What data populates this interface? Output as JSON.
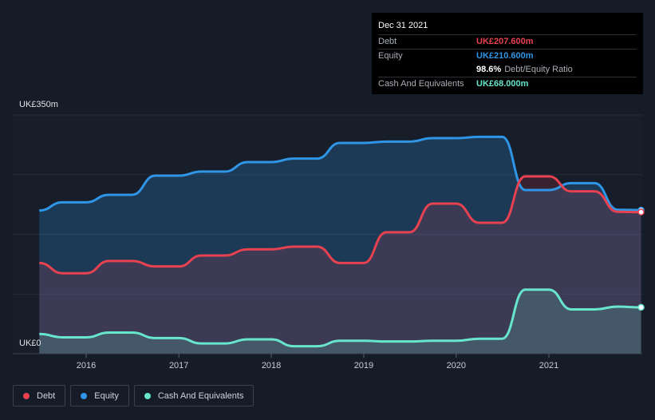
{
  "tooltip": {
    "date": "Dec 31 2021",
    "debt_label": "Debt",
    "debt_value": "UK£207.600m",
    "equity_label": "Equity",
    "equity_value": "UK£210.600m",
    "ratio_value": "98.6%",
    "ratio_label": "Debt/Equity Ratio",
    "cash_label": "Cash And Equivalents",
    "cash_value": "UK£68.000m"
  },
  "legend": [
    {
      "label": "Debt",
      "color": "#e8414f"
    },
    {
      "label": "Equity",
      "color": "#2f95e6"
    },
    {
      "label": "Cash And Equivalents",
      "color": "#68e5cd"
    }
  ],
  "chart_data": {
    "type": "area",
    "ylim": [
      0,
      350
    ],
    "y_tick_labels": {
      "top": "UK£350m",
      "bottom": "UK£0"
    },
    "x_tick_labels": [
      "2016",
      "2017",
      "2018",
      "2019",
      "2020",
      "2021"
    ],
    "grid": true,
    "legend_position": "bottom-left",
    "series": [
      {
        "name": "Debt",
        "color": "#e8414f",
        "points": [
          [
            "2015-06-30",
            133
          ],
          [
            "2015-09-30",
            118
          ],
          [
            "2016-01-01",
            118
          ],
          [
            "2016-03-31",
            136
          ],
          [
            "2016-06-30",
            136
          ],
          [
            "2016-09-30",
            128
          ],
          [
            "2017-01-01",
            128
          ],
          [
            "2017-03-31",
            144
          ],
          [
            "2017-06-30",
            144
          ],
          [
            "2017-09-30",
            153
          ],
          [
            "2018-01-01",
            153
          ],
          [
            "2018-03-31",
            157
          ],
          [
            "2018-06-30",
            157
          ],
          [
            "2018-09-30",
            133
          ],
          [
            "2019-01-01",
            133
          ],
          [
            "2019-03-31",
            178
          ],
          [
            "2019-06-30",
            178
          ],
          [
            "2019-09-30",
            220
          ],
          [
            "2020-01-01",
            220
          ],
          [
            "2020-03-31",
            192
          ],
          [
            "2020-06-30",
            192
          ],
          [
            "2020-09-30",
            260
          ],
          [
            "2021-01-01",
            260
          ],
          [
            "2021-03-31",
            238
          ],
          [
            "2021-06-30",
            238
          ],
          [
            "2021-09-30",
            208
          ],
          [
            "2021-12-31",
            207.6
          ]
        ]
      },
      {
        "name": "Equity",
        "color": "#2f95e6",
        "points": [
          [
            "2015-06-30",
            210
          ],
          [
            "2015-09-30",
            222
          ],
          [
            "2016-01-01",
            222
          ],
          [
            "2016-03-31",
            233
          ],
          [
            "2016-06-30",
            233
          ],
          [
            "2016-09-30",
            261
          ],
          [
            "2017-01-01",
            261
          ],
          [
            "2017-03-31",
            267
          ],
          [
            "2017-06-30",
            267
          ],
          [
            "2017-09-30",
            281
          ],
          [
            "2018-01-01",
            281
          ],
          [
            "2018-03-31",
            286
          ],
          [
            "2018-06-30",
            286
          ],
          [
            "2018-09-30",
            309
          ],
          [
            "2019-01-01",
            309
          ],
          [
            "2019-03-31",
            311
          ],
          [
            "2019-06-30",
            311
          ],
          [
            "2019-09-30",
            316
          ],
          [
            "2020-01-01",
            316
          ],
          [
            "2020-03-31",
            318
          ],
          [
            "2020-06-30",
            318
          ],
          [
            "2020-09-30",
            240
          ],
          [
            "2021-01-01",
            240
          ],
          [
            "2021-03-31",
            250
          ],
          [
            "2021-06-30",
            250
          ],
          [
            "2021-09-30",
            211
          ],
          [
            "2021-12-31",
            210.6
          ]
        ]
      },
      {
        "name": "Cash And Equivalents",
        "color": "#68e5cd",
        "points": [
          [
            "2015-06-30",
            29
          ],
          [
            "2015-09-30",
            24
          ],
          [
            "2016-01-01",
            24
          ],
          [
            "2016-03-31",
            31
          ],
          [
            "2016-06-30",
            31
          ],
          [
            "2016-09-30",
            23
          ],
          [
            "2017-01-01",
            23
          ],
          [
            "2017-03-31",
            15
          ],
          [
            "2017-06-30",
            15
          ],
          [
            "2017-09-30",
            21
          ],
          [
            "2018-01-01",
            21
          ],
          [
            "2018-03-31",
            11
          ],
          [
            "2018-06-30",
            11
          ],
          [
            "2018-09-30",
            19
          ],
          [
            "2019-01-01",
            19
          ],
          [
            "2019-03-31",
            18
          ],
          [
            "2019-06-30",
            18
          ],
          [
            "2019-09-30",
            19
          ],
          [
            "2020-01-01",
            19
          ],
          [
            "2020-03-31",
            22
          ],
          [
            "2020-06-30",
            22
          ],
          [
            "2020-09-30",
            94
          ],
          [
            "2021-01-01",
            94
          ],
          [
            "2021-03-31",
            65
          ],
          [
            "2021-06-30",
            65
          ],
          [
            "2021-09-30",
            69
          ],
          [
            "2021-12-31",
            68
          ]
        ]
      }
    ]
  }
}
